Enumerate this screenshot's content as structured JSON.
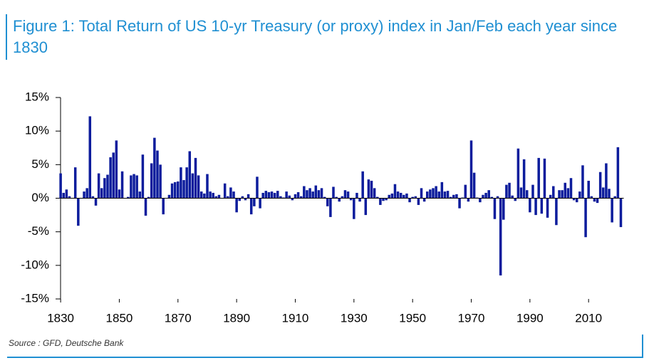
{
  "chart_data": {
    "type": "bar",
    "title": "Figure 1: Total Return of US 10-yr Treasury (or proxy) index in Jan/Feb each year since 1830",
    "source": "Source : GFD, Deutsche Bank",
    "color": "#0c1c9c",
    "x": [
      1830,
      1831,
      1832,
      1833,
      1834,
      1835,
      1836,
      1837,
      1838,
      1839,
      1840,
      1841,
      1842,
      1843,
      1844,
      1845,
      1846,
      1847,
      1848,
      1849,
      1850,
      1851,
      1852,
      1853,
      1854,
      1855,
      1856,
      1857,
      1858,
      1859,
      1860,
      1861,
      1862,
      1863,
      1864,
      1865,
      1866,
      1867,
      1868,
      1869,
      1870,
      1871,
      1872,
      1873,
      1874,
      1875,
      1876,
      1877,
      1878,
      1879,
      1880,
      1881,
      1882,
      1883,
      1884,
      1885,
      1886,
      1887,
      1888,
      1889,
      1890,
      1891,
      1892,
      1893,
      1894,
      1895,
      1896,
      1897,
      1898,
      1899,
      1900,
      1901,
      1902,
      1903,
      1904,
      1905,
      1906,
      1907,
      1908,
      1909,
      1910,
      1911,
      1912,
      1913,
      1914,
      1915,
      1916,
      1917,
      1918,
      1919,
      1920,
      1921,
      1922,
      1923,
      1924,
      1925,
      1926,
      1927,
      1928,
      1929,
      1930,
      1931,
      1932,
      1933,
      1934,
      1935,
      1936,
      1937,
      1938,
      1939,
      1940,
      1941,
      1942,
      1943,
      1944,
      1945,
      1946,
      1947,
      1948,
      1949,
      1950,
      1951,
      1952,
      1953,
      1954,
      1955,
      1956,
      1957,
      1958,
      1959,
      1960,
      1961,
      1962,
      1963,
      1964,
      1965,
      1966,
      1967,
      1968,
      1969,
      1970,
      1971,
      1972,
      1973,
      1974,
      1975,
      1976,
      1977,
      1978,
      1979,
      1980,
      1981,
      1982,
      1983,
      1984,
      1985,
      1986,
      1987,
      1988,
      1989,
      1990,
      1991,
      1992,
      1993,
      1994,
      1995,
      1996,
      1997,
      1998,
      1999,
      2000,
      2001,
      2002,
      2003,
      2004,
      2005,
      2006,
      2007,
      2008,
      2009,
      2010,
      2011,
      2012,
      2013,
      2014,
      2015,
      2016,
      2017,
      2018,
      2019,
      2020,
      2021
    ],
    "values": [
      3.7,
      0.8,
      1.3,
      0.3,
      0,
      4.6,
      -4.1,
      0,
      1.0,
      1.5,
      12.2,
      0.3,
      -1.1,
      3.7,
      1.5,
      3.0,
      3.5,
      6.1,
      6.8,
      8.6,
      1.3,
      4.0,
      0,
      0.2,
      3.4,
      3.6,
      3.4,
      1.0,
      6.5,
      -2.6,
      0.2,
      5.2,
      9.0,
      7.1,
      5.0,
      -2.4,
      0,
      0.5,
      2.2,
      2.4,
      2.5,
      4.6,
      2.7,
      4.6,
      7.0,
      3.7,
      6.0,
      3.4,
      1.0,
      0.7,
      3.6,
      1.0,
      0.8,
      0.3,
      0.5,
      0,
      2.2,
      0.3,
      1.6,
      1.0,
      -2.1,
      -0.4,
      0.3,
      -0.3,
      0.6,
      -2.4,
      -1.2,
      3.2,
      -1.5,
      0.8,
      1.1,
      0.9,
      1.0,
      0.8,
      1.1,
      0.3,
      0.1,
      1.0,
      0.4,
      -0.3,
      0.6,
      0.9,
      0.3,
      1.8,
      1.2,
      1.5,
      1.0,
      1.9,
      1.2,
      1.5,
      0.2,
      -1.2,
      -2.8,
      1.7,
      0.2,
      -0.5,
      0.3,
      1.2,
      1.0,
      -0.3,
      -3.1,
      0.8,
      -0.5,
      4.0,
      -2.5,
      2.8,
      2.6,
      1.5,
      0.2,
      -1.0,
      -0.4,
      -0.3,
      0.5,
      0.7,
      2.1,
      1.0,
      0.8,
      0.5,
      0.7,
      -0.6,
      0.2,
      0.3,
      -1.0,
      1.5,
      -0.5,
      1.0,
      1.3,
      1.5,
      1.8,
      1.0,
      2.4,
      1.0,
      1.1,
      0.2,
      0.5,
      0.6,
      -1.5,
      0.1,
      2.0,
      -0.5,
      8.6,
      3.8,
      0.1,
      -0.6,
      0.5,
      0.8,
      1.2,
      0.2,
      -3.1,
      0.3,
      -11.5,
      -3.2,
      2.0,
      2.3,
      0.4,
      -0.4,
      7.4,
      1.6,
      5.8,
      1.2,
      -2.1,
      2.0,
      -2.5,
      6.0,
      -2.3,
      5.9,
      -2.9,
      0.5,
      1.8,
      -4.0,
      1.2,
      1.2,
      2.3,
      1.5,
      3.0,
      -0.3,
      -0.6,
      1.0,
      4.9,
      -5.8,
      2.6,
      0.3,
      -0.5,
      -0.7,
      3.9,
      1.6,
      5.2,
      1.4,
      -3.6,
      0.3,
      7.6,
      -4.3
    ],
    "xlim": [
      1829,
      2022
    ],
    "xticks": [
      1830,
      1850,
      1870,
      1890,
      1910,
      1930,
      1950,
      1970,
      1990,
      2010
    ],
    "ylim": [
      -15,
      15
    ],
    "yticks": [
      {
        "value": -15,
        "label": "-15%"
      },
      {
        "value": -10,
        "label": "-10%"
      },
      {
        "value": -5,
        "label": "-5%"
      },
      {
        "value": 0,
        "label": "0%"
      },
      {
        "value": 5,
        "label": "5%"
      },
      {
        "value": 10,
        "label": "10%"
      },
      {
        "value": 15,
        "label": "15%"
      }
    ]
  }
}
